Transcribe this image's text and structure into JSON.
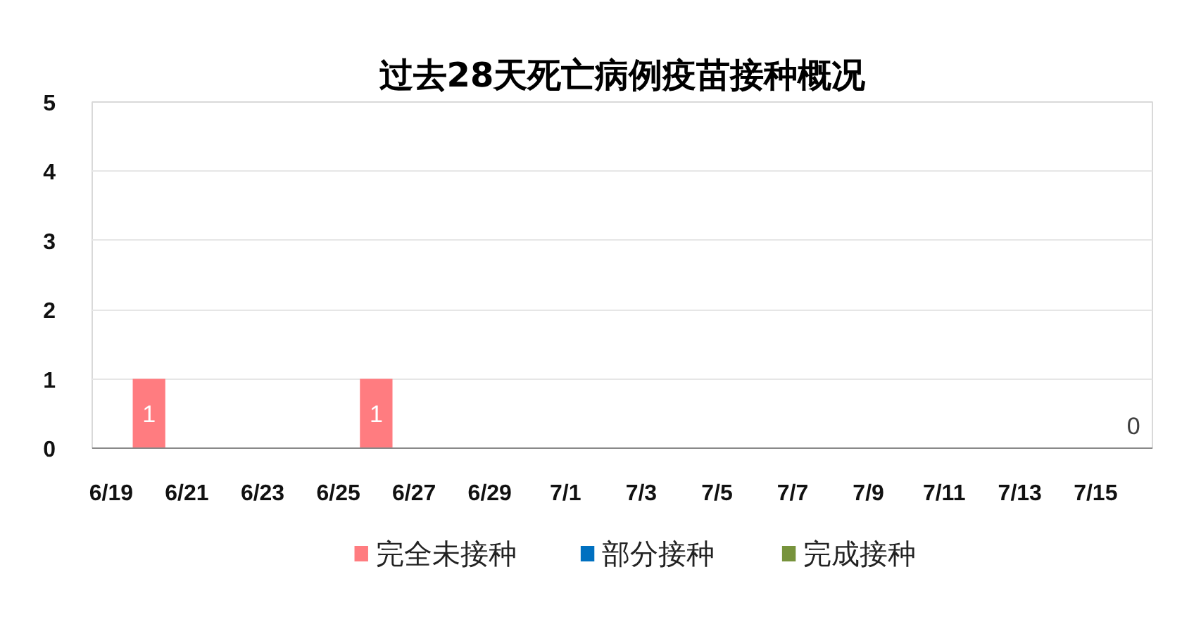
{
  "chart_data": {
    "type": "bar",
    "title": "过去28天死亡病例疫苗接种概况",
    "categories": [
      "6/19",
      null,
      "6/21",
      null,
      "6/23",
      null,
      "6/25",
      null,
      "6/27",
      null,
      "6/29",
      null,
      "7/1",
      null,
      "7/3",
      null,
      "7/5",
      null,
      "7/7",
      null,
      "7/9",
      null,
      "7/11",
      null,
      "7/13",
      null,
      "7/15",
      null
    ],
    "stacked": true,
    "series": [
      {
        "name": "完全未接种",
        "color": "#ff7c80",
        "values": [
          null,
          1,
          null,
          null,
          null,
          null,
          null,
          1,
          null,
          null,
          null,
          null,
          null,
          null,
          null,
          null,
          null,
          null,
          null,
          null,
          null,
          null,
          null,
          null,
          null,
          null,
          null,
          0
        ]
      },
      {
        "name": "部分接种",
        "color": "#0070c0",
        "values": [
          null,
          null,
          null,
          null,
          null,
          null,
          null,
          null,
          null,
          null,
          null,
          null,
          null,
          null,
          null,
          null,
          null,
          null,
          null,
          null,
          null,
          null,
          null,
          null,
          null,
          null,
          null,
          null
        ]
      },
      {
        "name": "完成接种",
        "color": "#77933c",
        "values": [
          null,
          null,
          null,
          null,
          null,
          null,
          null,
          null,
          null,
          null,
          null,
          null,
          null,
          null,
          null,
          null,
          null,
          null,
          null,
          null,
          null,
          null,
          null,
          null,
          null,
          null,
          null,
          null
        ]
      }
    ],
    "ylim": [
      0,
      5
    ],
    "yticks": [
      0,
      1,
      2,
      3,
      4,
      5
    ],
    "grid": "y",
    "legend": "bottom",
    "data_labels": true
  }
}
